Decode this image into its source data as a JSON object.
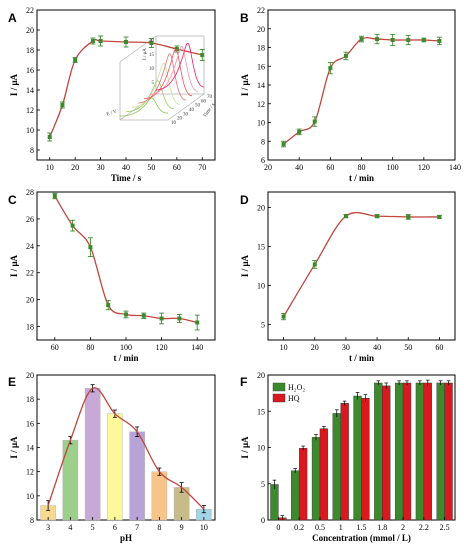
{
  "colors": {
    "curve": "#c0463e",
    "point": "#3d8a2e",
    "errbar": "#3d8a2e",
    "bar_h2o2": "#3d8a2e",
    "bar_hq": "#d9181f",
    "ph_bars": [
      "#f6d98e",
      "#9bcf8a",
      "#c8a8d6",
      "#fdf89a",
      "#b8a3d6",
      "#f7c48a",
      "#c7bb8a",
      "#a3d3e6"
    ]
  },
  "chart_data": [
    {
      "panel": "A",
      "type": "line",
      "xlabel": "Time / s",
      "ylabel": "I / μA",
      "xlim": [
        5,
        75
      ],
      "ylim": [
        7,
        22
      ],
      "xticks": [
        10,
        20,
        30,
        40,
        50,
        60,
        70
      ],
      "yticks": [
        8,
        10,
        12,
        14,
        16,
        18,
        20,
        22
      ],
      "x": [
        10,
        15,
        20,
        27,
        30,
        40,
        50,
        60,
        70
      ],
      "y": [
        9.3,
        12.5,
        17.0,
        18.9,
        18.9,
        18.8,
        18.7,
        18.1,
        17.5
      ],
      "err": [
        0.4,
        0.3,
        0.25,
        0.3,
        0.5,
        0.5,
        0.45,
        0.3,
        0.55
      ],
      "inset": {
        "type": "3d-line",
        "xlabel": "E / V",
        "ylabel": "I / μA",
        "zlabel": "Time / s",
        "zticks": [
          "10",
          "20",
          "30",
          "40",
          "50",
          "60",
          "70"
        ],
        "ytick_labels": [
          "20",
          "15",
          "10",
          "5"
        ],
        "peak_heights": [
          7,
          12,
          17,
          19,
          19,
          18.5,
          18
        ]
      }
    },
    {
      "panel": "B",
      "type": "line",
      "xlabel": "t / min",
      "ylabel": "I / μA",
      "xlim": [
        20,
        140
      ],
      "ylim": [
        6,
        22
      ],
      "xticks": [
        20,
        40,
        60,
        80,
        100,
        120,
        140
      ],
      "yticks": [
        6,
        8,
        10,
        12,
        14,
        16,
        18,
        20,
        22
      ],
      "x": [
        30,
        40,
        50,
        60,
        70,
        80,
        90,
        100,
        110,
        120,
        130
      ],
      "y": [
        7.7,
        9.0,
        10.1,
        15.8,
        17.1,
        18.9,
        18.9,
        18.8,
        18.8,
        18.8,
        18.7
      ],
      "err": [
        0.3,
        0.3,
        0.5,
        0.6,
        0.4,
        0.3,
        0.5,
        0.6,
        0.5,
        0.2,
        0.4
      ]
    },
    {
      "panel": "C",
      "type": "line",
      "xlabel": "t / min",
      "ylabel": "I / μA",
      "xlim": [
        50,
        150
      ],
      "ylim": [
        17,
        28
      ],
      "xticks": [
        60,
        80,
        100,
        120,
        140
      ],
      "yticks": [
        18,
        20,
        22,
        24,
        26,
        28
      ],
      "x": [
        60,
        70,
        80,
        90,
        100,
        110,
        120,
        130,
        140
      ],
      "y": [
        27.7,
        25.5,
        23.9,
        19.6,
        18.9,
        18.8,
        18.6,
        18.6,
        18.3
      ],
      "err": [
        0.2,
        0.4,
        0.7,
        0.35,
        0.25,
        0.2,
        0.4,
        0.3,
        0.55
      ]
    },
    {
      "panel": "D",
      "type": "line",
      "xlabel": "t / min",
      "ylabel": "I / μA",
      "xlim": [
        5,
        65
      ],
      "ylim": [
        3,
        22
      ],
      "xticks": [
        10,
        20,
        30,
        40,
        50,
        60
      ],
      "yticks": [
        5,
        10,
        15,
        20
      ],
      "x": [
        10,
        20,
        30,
        40,
        50,
        60
      ],
      "y": [
        6.0,
        12.7,
        18.9,
        18.9,
        18.8,
        18.8
      ],
      "err": [
        0.4,
        0.5,
        0.2,
        0.2,
        0.3,
        0.2
      ]
    },
    {
      "panel": "E",
      "type": "bar",
      "xlabel": "pH",
      "ylabel": "I / μA",
      "ylim": [
        8,
        20
      ],
      "yticks": [
        8,
        10,
        12,
        14,
        16,
        18,
        20
      ],
      "categories": [
        "3",
        "4",
        "5",
        "6",
        "7",
        "8",
        "9",
        "10"
      ],
      "values": [
        9.2,
        14.6,
        18.9,
        16.8,
        15.3,
        12.0,
        10.7,
        8.9
      ],
      "err": [
        0.4,
        0.3,
        0.3,
        0.3,
        0.4,
        0.3,
        0.4,
        0.3
      ],
      "fit_curve": true
    },
    {
      "panel": "F",
      "type": "bar",
      "xlabel": "Concentration (mmol / L)",
      "ylabel": "I / μA",
      "ylim": [
        0,
        20
      ],
      "yticks": [
        0,
        5,
        10,
        15,
        20
      ],
      "categories": [
        "0",
        "0.2",
        "0.5",
        "1",
        "1.5",
        "1.8",
        "2",
        "2.2",
        "2.5"
      ],
      "series": [
        {
          "name": "H2O2",
          "values": [
            4.9,
            6.8,
            11.4,
            14.7,
            17.1,
            18.9,
            18.9,
            18.9,
            18.9
          ],
          "err": [
            0.6,
            0.3,
            0.4,
            0.5,
            0.5,
            0.3,
            0.3,
            0.3,
            0.3
          ]
        },
        {
          "name": "HQ",
          "values": [
            0.3,
            9.9,
            12.6,
            16.1,
            16.8,
            18.5,
            18.9,
            18.9,
            18.9
          ],
          "err": [
            0.3,
            0.3,
            0.3,
            0.3,
            0.5,
            0.4,
            0.3,
            0.4,
            0.3
          ]
        }
      ],
      "legend": {
        "placement": "top-left",
        "entries": [
          "H₂O₂",
          "HQ"
        ]
      }
    }
  ]
}
